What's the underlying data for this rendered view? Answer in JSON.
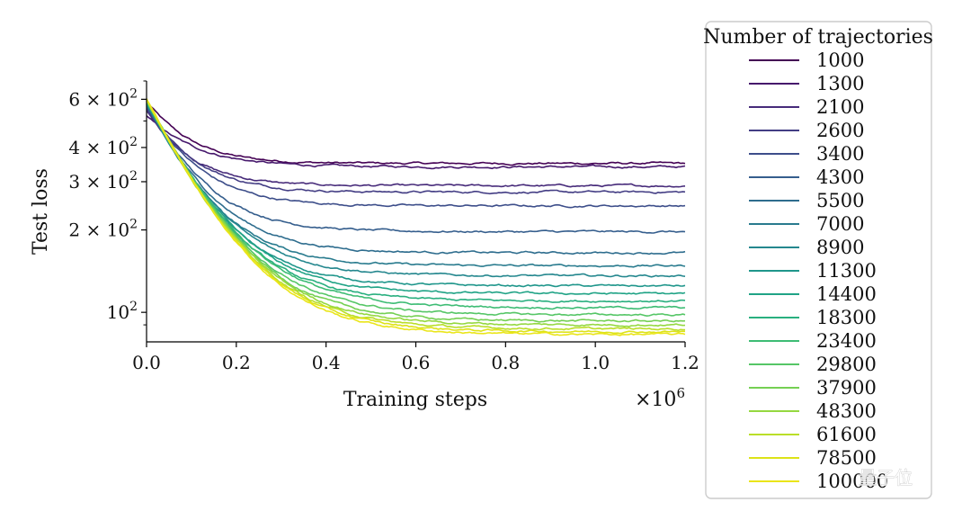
{
  "chart_data": {
    "type": "line",
    "title": "",
    "xlabel": "Training steps",
    "x_offset_label": "×10",
    "x_offset_exp": "6",
    "ylabel": "Test loss",
    "yscale": "log",
    "xlim": [
      0.0,
      1.2
    ],
    "ylim": [
      78,
      700
    ],
    "x_ticks": [
      {
        "value": 0.0,
        "label": "0.0"
      },
      {
        "value": 0.2,
        "label": "0.2"
      },
      {
        "value": 0.4,
        "label": "0.4"
      },
      {
        "value": 0.6,
        "label": "0.6"
      },
      {
        "value": 0.8,
        "label": "0.8"
      },
      {
        "value": 1.0,
        "label": "1.0"
      },
      {
        "value": 1.2,
        "label": "1.2"
      }
    ],
    "y_ticks": [
      {
        "value": 600,
        "mantissa": "6",
        "times": "×",
        "base": "10",
        "exp": "2"
      },
      {
        "value": 400,
        "mantissa": "4",
        "times": "×",
        "base": "10",
        "exp": "2"
      },
      {
        "value": 300,
        "mantissa": "3",
        "times": "×",
        "base": "10",
        "exp": "2"
      },
      {
        "value": 200,
        "mantissa": "2",
        "times": "×",
        "base": "10",
        "exp": "2"
      },
      {
        "value": 100,
        "mantissa": "",
        "times": "",
        "base": "10",
        "exp": "2"
      }
    ],
    "y_minor_ticks": [
      90,
      500,
      700
    ],
    "legend": {
      "title": "Number of trajectories",
      "position": "outside-right"
    },
    "series": [
      {
        "name": "1000",
        "color": "#440154",
        "start": 590,
        "final": 350,
        "tau": 0.085
      },
      {
        "name": "1300",
        "color": "#46186c",
        "start": 520,
        "final": 340,
        "tau": 0.1
      },
      {
        "name": "2100",
        "color": "#472b7a",
        "start": 545,
        "final": 290,
        "tau": 0.085
      },
      {
        "name": "2600",
        "color": "#433d84",
        "start": 555,
        "final": 275,
        "tau": 0.09
      },
      {
        "name": "3400",
        "color": "#3d4e8a",
        "start": 560,
        "final": 245,
        "tau": 0.095
      },
      {
        "name": "4300",
        "color": "#355e8d",
        "start": 565,
        "final": 197,
        "tau": 0.1
      },
      {
        "name": "5500",
        "color": "#2e6d8e",
        "start": 570,
        "final": 165,
        "tau": 0.105
      },
      {
        "name": "7000",
        "color": "#297b8e",
        "start": 575,
        "final": 148,
        "tau": 0.105
      },
      {
        "name": "8900",
        "color": "#24878e",
        "start": 580,
        "final": 136,
        "tau": 0.11
      },
      {
        "name": "11300",
        "color": "#1f968b",
        "start": 582,
        "final": 125,
        "tau": 0.11
      },
      {
        "name": "14400",
        "color": "#20a386",
        "start": 585,
        "final": 117,
        "tau": 0.115
      },
      {
        "name": "18300",
        "color": "#29af7f",
        "start": 588,
        "final": 110,
        "tau": 0.115
      },
      {
        "name": "23400",
        "color": "#3dbc74",
        "start": 590,
        "final": 104,
        "tau": 0.12
      },
      {
        "name": "29800",
        "color": "#56c667",
        "start": 592,
        "final": 98,
        "tau": 0.12
      },
      {
        "name": "37900",
        "color": "#75d054",
        "start": 594,
        "final": 93,
        "tau": 0.12
      },
      {
        "name": "48300",
        "color": "#95d840",
        "start": 596,
        "final": 90,
        "tau": 0.12
      },
      {
        "name": "61600",
        "color": "#bade28",
        "start": 598,
        "final": 87,
        "tau": 0.12
      },
      {
        "name": "78500",
        "color": "#dde318",
        "start": 600,
        "final": 85,
        "tau": 0.12
      },
      {
        "name": "100000",
        "color": "#eae51a",
        "start": 602,
        "final": 83,
        "tau": 0.12
      }
    ]
  },
  "watermark": {
    "text": "量子位"
  }
}
